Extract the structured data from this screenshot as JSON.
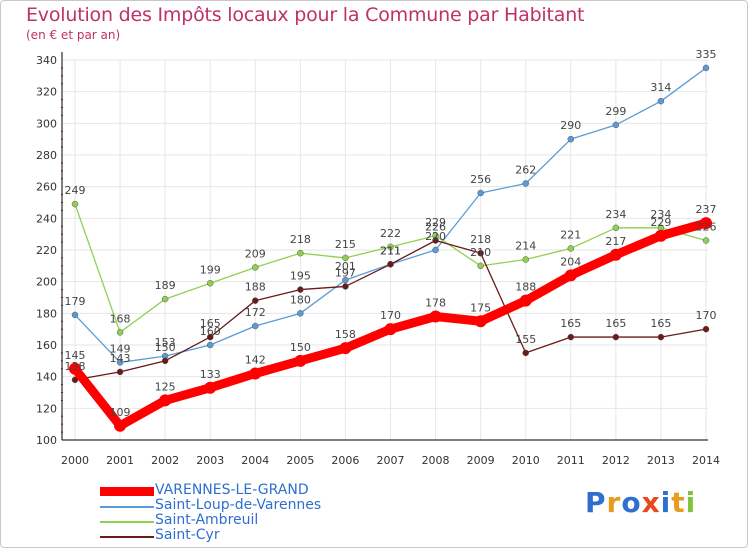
{
  "header": {
    "title": "Evolution des Impôts locaux pour la Commune par Habitant",
    "subtitle": "(en € et par an)"
  },
  "logo": {
    "text": "Proxiti",
    "letters": [
      "P",
      "r",
      "o",
      "x",
      "i",
      "t",
      "i"
    ],
    "colors": [
      "#2e6fd0",
      "#e89c1c",
      "#2e6fd0",
      "#e8481c",
      "#2e6fd0",
      "#e89c1c",
      "#7fc43a"
    ]
  },
  "colors": {
    "title": "#c0306a",
    "legend_text": "#2e6fd0",
    "grid": "#e6e6e6",
    "axis": "#000000"
  },
  "chart_data": {
    "type": "line",
    "title": "Evolution des Impôts locaux pour la Commune par Habitant",
    "subtitle": "(en € et par an)",
    "xlabel": "",
    "ylabel": "",
    "ylim": [
      100,
      340
    ],
    "yticks": [
      100,
      120,
      140,
      160,
      180,
      200,
      220,
      240,
      260,
      280,
      300,
      320,
      340
    ],
    "x": [
      "2000",
      "2001",
      "2002",
      "2003",
      "2004",
      "2005",
      "2006",
      "2007",
      "2008",
      "2009",
      "2010",
      "2011",
      "2012",
      "2013",
      "2014"
    ],
    "legend_position": "bottom-left",
    "series": [
      {
        "name": "VARENNES-LE-GRAND",
        "color": "#ff0000",
        "width": 9,
        "marker": 6,
        "values": [
          145,
          109,
          125,
          133,
          142,
          150,
          158,
          170,
          178,
          175,
          188,
          204,
          217,
          229,
          237
        ]
      },
      {
        "name": "Saint-Loup-de-Varennes",
        "color": "#5b9bd5",
        "width": 1.3,
        "marker": 3,
        "values": [
          179,
          149,
          153,
          160,
          172,
          180,
          201,
          211,
          220,
          256,
          262,
          290,
          299,
          314,
          335
        ]
      },
      {
        "name": "Saint-Ambreuil",
        "color": "#8fd14f",
        "width": 1.3,
        "marker": 3,
        "values": [
          249,
          168,
          189,
          199,
          209,
          218,
          215,
          222,
          229,
          210,
          214,
          221,
          234,
          234,
          226
        ]
      },
      {
        "name": "Saint-Cyr",
        "color": "#6b1a1a",
        "width": 1.3,
        "marker": 3,
        "values": [
          138,
          143,
          150,
          165,
          188,
          195,
          197,
          211,
          226,
          218,
          155,
          165,
          165,
          165,
          170
        ]
      }
    ]
  }
}
